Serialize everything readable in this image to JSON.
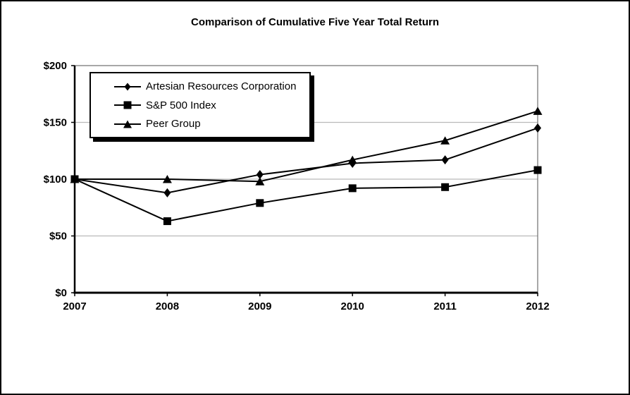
{
  "title": "Comparison of Cumulative Five Year Total Return",
  "chart_data": {
    "type": "line",
    "title": "Comparison of Cumulative Five Year Total Return",
    "x": [
      "2007",
      "2008",
      "2009",
      "2010",
      "2011",
      "2012"
    ],
    "series": [
      {
        "name": "Artesian Resources Corporation",
        "marker": "diamond",
        "values": [
          100,
          88,
          104,
          114,
          117,
          145
        ]
      },
      {
        "name": "S&P 500 Index",
        "marker": "square",
        "values": [
          100,
          63,
          79,
          92,
          93,
          108
        ]
      },
      {
        "name": "Peer Group",
        "marker": "triangle",
        "values": [
          100,
          100,
          98,
          117,
          134,
          160
        ]
      }
    ],
    "xlabel": "",
    "ylabel": "",
    "ylim": [
      0,
      200
    ],
    "y_tick_values": [
      0,
      50,
      100,
      150,
      200
    ],
    "y_tick_labels": [
      "$0",
      "$50",
      "$100",
      "$150",
      "$200"
    ],
    "grid": "horizontal",
    "legend_position": "top-left-inside",
    "series_color": "#000000",
    "grid_color": "#b9b9b9",
    "plot_border_color": "#6e6e6e",
    "axis_color": "#000000",
    "background_color": "#ffffff"
  }
}
